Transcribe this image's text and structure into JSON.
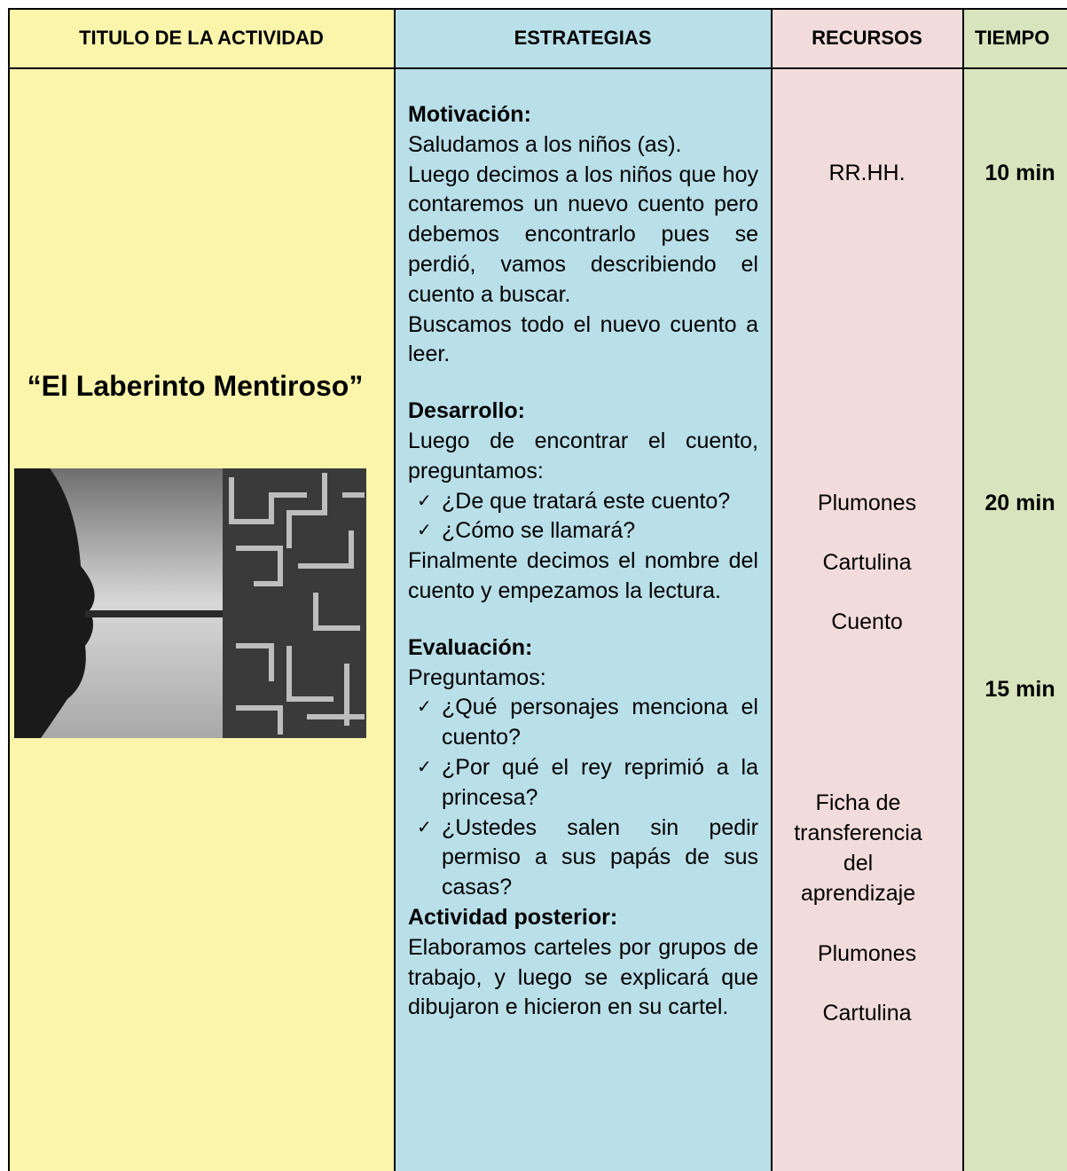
{
  "table": {
    "headers": [
      "TITULO DE LA ACTIVIDAD",
      "ESTRATEGIAS",
      "RECURSOS",
      "TIEMPO"
    ],
    "title": "“El Laberinto Mentiroso”",
    "strategies": [
      {
        "heading": "Motivación:",
        "intro": [
          "Saludamos a los niños (as).",
          "Luego decimos a los niños que hoy contaremos un nuevo cuento pero debemos encontrarlo pues se perdió, vamos describiendo el cuento a buscar.",
          "Buscamos todo el nuevo cuento a leer."
        ]
      },
      {
        "heading": "Desarrollo:",
        "intro": [
          "Luego de encontrar el cuento, preguntamos:"
        ],
        "bullets": [
          "¿De que tratará este cuento?",
          "¿Cómo se llamará?"
        ],
        "outro": [
          "Finalmente decimos el nombre del cuento y empezamos la lectura."
        ]
      },
      {
        "heading": "Evaluación:",
        "intro": [
          "Preguntamos:"
        ],
        "bullets": [
          "¿Qué personajes menciona el cuento?",
          "¿Por qué el rey reprimió a la princesa?",
          "¿Ustedes salen sin pedir permiso a sus papás de sus casas?"
        ]
      },
      {
        "heading": "Actividad posterior:",
        "intro": [
          "Elaboramos carteles por grupos de trabajo, y luego se explicará que dibujaron e hicieron en su cartel."
        ]
      }
    ],
    "resources": [
      "RR.HH.",
      "Plumones",
      "Cartulina",
      "Cuento",
      "Ficha de transferencia del aprendizaje",
      "Plumones",
      "Cartulina"
    ],
    "times": [
      "10 min",
      "20 min",
      "15 min"
    ]
  }
}
